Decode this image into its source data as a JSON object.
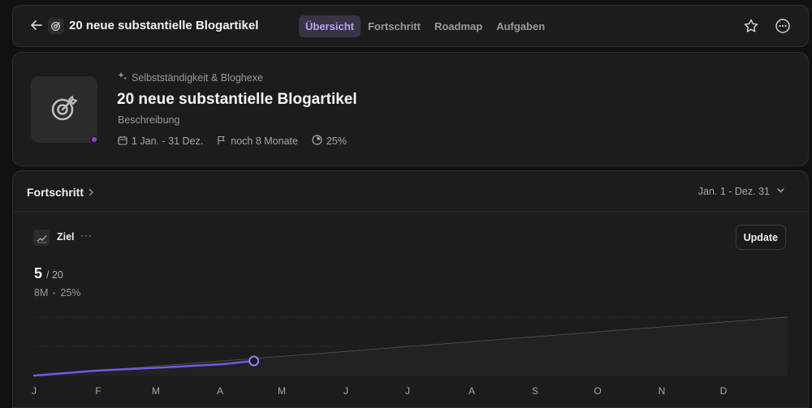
{
  "header": {
    "title": "20 neue substantielle Blogartikel",
    "tabs": [
      {
        "label": "Übersicht",
        "active": true
      },
      {
        "label": "Fortschritt",
        "active": false
      },
      {
        "label": "Roadmap",
        "active": false
      },
      {
        "label": "Aufgaben",
        "active": false
      }
    ],
    "icons": {
      "back": "arrow-left-icon",
      "title": "target-icon",
      "star": "star-icon",
      "more": "more-icon"
    }
  },
  "goal": {
    "breadcrumb": "Selbstständigkeit & Bloghexe",
    "title": "20 neue substantielle Blogartikel",
    "description": "Beschreibung",
    "date_range": "1 Jan. - 31 Dez.",
    "remaining": "noch 8 Monate",
    "percent": "25%",
    "status_color": "#8a3ff0"
  },
  "progress": {
    "title": "Fortschritt",
    "range": "Jan. 1 - Dez. 31",
    "metric": {
      "name": "Ziel",
      "more": "···",
      "update_label": "Update",
      "current": "5",
      "total": "/ 20",
      "remaining": "8M",
      "percent": "25%"
    }
  },
  "chart_data": {
    "type": "line",
    "title": "Ziel",
    "xlabel": "",
    "ylabel": "",
    "categories": [
      "J",
      "F",
      "M",
      "A",
      "M",
      "J",
      "J",
      "A",
      "S",
      "O",
      "N",
      "D"
    ],
    "ylim": [
      0,
      20
    ],
    "series": [
      {
        "name": "Fortschritt",
        "color": "#6b5be0",
        "x": [
          0,
          1,
          2,
          3,
          3.5
        ],
        "values": [
          0,
          1.7,
          2.7,
          3.9,
          5
        ]
      },
      {
        "name": "Ziel",
        "color": "#555555",
        "x": [
          0,
          12
        ],
        "values": [
          0,
          20
        ]
      }
    ],
    "current_point": {
      "x": 3.5,
      "value": 5
    }
  }
}
